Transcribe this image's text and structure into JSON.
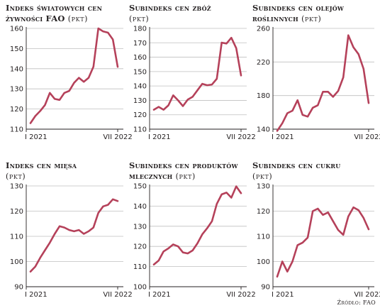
{
  "source": "Źródło: FAO",
  "colors": {
    "line": "#b5415a",
    "grid": "#bfbfbf",
    "axis": "#231f20"
  },
  "chart_data": [
    {
      "type": "line",
      "title": "Indeks światowych cen żywności FAO",
      "unit": "(pkt)",
      "x_start_label": "I 2021",
      "x_end_label": "VII 2022",
      "ylim": [
        110,
        160
      ],
      "yticks": [
        110,
        120,
        130,
        140,
        150,
        160
      ],
      "x": [
        "I 2021",
        "II 2021",
        "III 2021",
        "IV 2021",
        "V 2021",
        "VI 2021",
        "VII 2021",
        "VIII 2021",
        "IX 2021",
        "X 2021",
        "XI 2021",
        "XII 2021",
        "I 2022",
        "II 2022",
        "III 2022",
        "IV 2022",
        "V 2022",
        "VI 2022",
        "VII 2022"
      ],
      "values": [
        113,
        116.5,
        119,
        122,
        128,
        125,
        124.5,
        128,
        129,
        133,
        135.5,
        133.5,
        135.5,
        141,
        160,
        158.5,
        157.9,
        154.5,
        140.9
      ]
    },
    {
      "type": "line",
      "title": "Subindeks cen zbóż",
      "unit": "(pkt)",
      "x_start_label": "I 2021",
      "x_end_label": "VII 2022",
      "ylim": [
        110,
        180
      ],
      "yticks": [
        110,
        120,
        130,
        140,
        150,
        160,
        170,
        180
      ],
      "x": [
        "I 2021",
        "II 2021",
        "III 2021",
        "IV 2021",
        "V 2021",
        "VI 2021",
        "VII 2021",
        "VIII 2021",
        "IX 2021",
        "X 2021",
        "XI 2021",
        "XII 2021",
        "I 2022",
        "II 2022",
        "III 2022",
        "IV 2022",
        "V 2022",
        "VI 2022",
        "VII 2022"
      ],
      "values": [
        123.5,
        125.5,
        123.5,
        126.5,
        133.5,
        130,
        126,
        130.5,
        132.5,
        137,
        141.5,
        140.5,
        141,
        145,
        170.1,
        169.5,
        173.5,
        166.3,
        147.3
      ]
    },
    {
      "type": "line",
      "title": "Subindeks cen olejów roślinnych",
      "unit": "(pkt)",
      "x_start_label": "I 2021",
      "x_end_label": "VII 2022",
      "ylim": [
        140,
        260
      ],
      "yticks": [
        140,
        180,
        220,
        260
      ],
      "x": [
        "I 2021",
        "II 2021",
        "III 2021",
        "IV 2021",
        "V 2021",
        "VI 2021",
        "VII 2021",
        "VIII 2021",
        "IX 2021",
        "X 2021",
        "XI 2021",
        "XII 2021",
        "I 2022",
        "II 2022",
        "III 2022",
        "IV 2022",
        "V 2022",
        "VI 2022",
        "VII 2022"
      ],
      "values": [
        138,
        147,
        159,
        162,
        174.5,
        157,
        155,
        165.5,
        168.5,
        184.5,
        184.5,
        178.5,
        185.5,
        201.7,
        251.8,
        237.5,
        229.3,
        211.8,
        171.1
      ]
    },
    {
      "type": "line",
      "title": "Indeks cen mięsa",
      "unit": "(pkt)",
      "x_start_label": "I 2021",
      "x_end_label": "VII 2022",
      "ylim": [
        90,
        130
      ],
      "yticks": [
        90,
        100,
        110,
        120,
        130
      ],
      "x": [
        "I 2021",
        "II 2021",
        "III 2021",
        "IV 2021",
        "V 2021",
        "VI 2021",
        "VII 2021",
        "VIII 2021",
        "IX 2021",
        "X 2021",
        "XI 2021",
        "XII 2021",
        "I 2022",
        "II 2022",
        "III 2022",
        "IV 2022",
        "V 2022",
        "VI 2022",
        "VII 2022"
      ],
      "values": [
        96,
        98,
        101.5,
        104.5,
        107.5,
        111,
        114,
        113.5,
        112.5,
        112,
        112.5,
        111,
        112,
        113.5,
        119.3,
        121.9,
        122.5,
        124.7,
        124
      ]
    },
    {
      "type": "line",
      "title": "Subindeks cen produktów mlecznych",
      "unit": "(pkt)",
      "x_start_label": "I 2021",
      "x_end_label": "VII 2022",
      "ylim": [
        100,
        150
      ],
      "yticks": [
        100,
        110,
        120,
        130,
        140,
        150
      ],
      "x": [
        "I 2021",
        "II 2021",
        "III 2021",
        "IV 2021",
        "V 2021",
        "VI 2021",
        "VII 2021",
        "VIII 2021",
        "IX 2021",
        "X 2021",
        "XI 2021",
        "XII 2021",
        "I 2022",
        "II 2022",
        "III 2022",
        "IV 2022",
        "V 2022",
        "VI 2022",
        "VII 2022"
      ],
      "values": [
        111,
        113,
        117.5,
        119,
        121,
        120,
        117,
        116.5,
        118,
        121.5,
        126,
        129,
        132.5,
        141.1,
        145.8,
        146.7,
        144.2,
        149.8,
        146.4
      ]
    },
    {
      "type": "line",
      "title": "Subindeks cen cukru",
      "unit": "(pkt)",
      "x_start_label": "I 2021",
      "x_end_label": "VII 2022",
      "ylim": [
        90,
        130
      ],
      "yticks": [
        90,
        100,
        110,
        120,
        130
      ],
      "x": [
        "I 2021",
        "II 2021",
        "III 2021",
        "IV 2021",
        "V 2021",
        "VI 2021",
        "VII 2021",
        "VIII 2021",
        "IX 2021",
        "X 2021",
        "XI 2021",
        "XII 2021",
        "I 2022",
        "II 2022",
        "III 2022",
        "IV 2022",
        "V 2022",
        "VI 2022",
        "VII 2022"
      ],
      "values": [
        94,
        100,
        96,
        100,
        106.5,
        107.5,
        109.5,
        120,
        121,
        118.5,
        119.5,
        116,
        112.5,
        110.6,
        117.9,
        121.5,
        120.4,
        117.3,
        112.8
      ]
    }
  ]
}
